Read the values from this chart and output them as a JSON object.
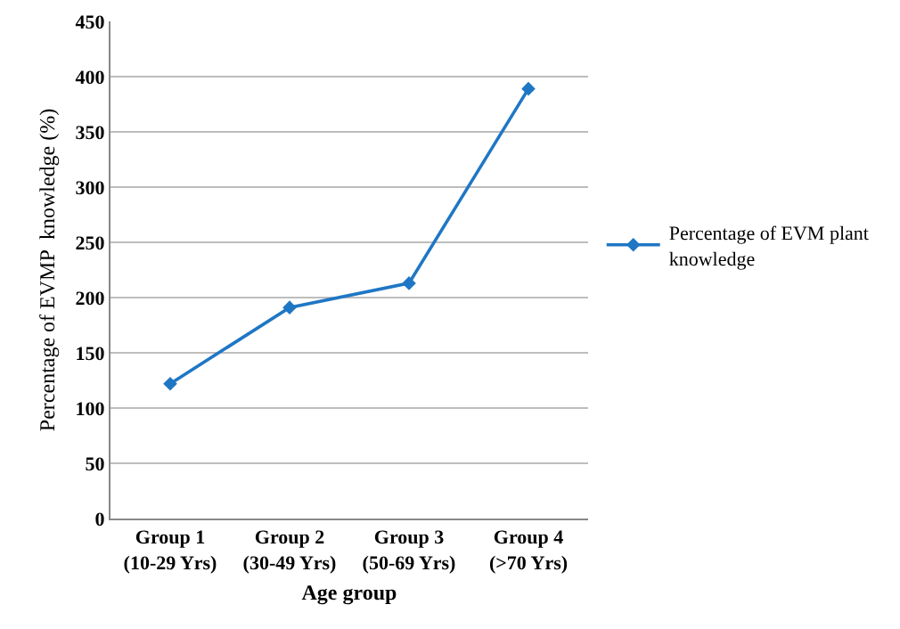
{
  "chart_data": {
    "type": "line",
    "xlabel": "Age group",
    "ylabel": "Percentage of EVMP  knowledge (%)",
    "categories": [
      "Group 1 (10-29 Yrs)",
      "Group 2 (30-49 Yrs)",
      "Group 3 (50-69 Yrs)",
      "Group 4 (>70 Yrs)"
    ],
    "series": [
      {
        "name": "Percentage of EVM plant knowledge",
        "color": "#1f77c4",
        "values": [
          122,
          191,
          213,
          389
        ]
      }
    ],
    "ylim": [
      0,
      450
    ],
    "yticks": [
      0,
      50,
      100,
      150,
      200,
      250,
      300,
      350,
      400,
      450
    ],
    "grid": "y",
    "legend": "right",
    "marker": "diamond",
    "line_style": "solid"
  }
}
